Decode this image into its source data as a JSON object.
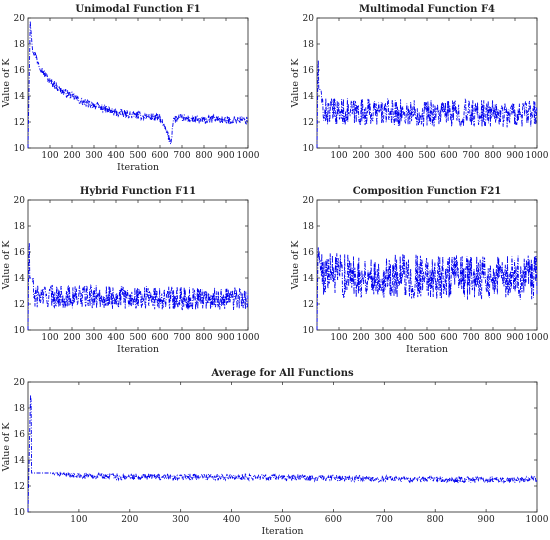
{
  "chart_data": [
    {
      "type": "line",
      "title": "Unimodal Function F1",
      "xlabel": "Iteration",
      "ylabel": "Value of K",
      "xlim": [
        0,
        1000
      ],
      "ylim": [
        10,
        20
      ],
      "xticks": [
        100,
        200,
        300,
        400,
        500,
        600,
        700,
        800,
        900,
        1000
      ],
      "xtick_labels": [
        "100",
        "200",
        "300",
        "400",
        "500",
        "600",
        "700",
        "800",
        "900",
        "1000"
      ],
      "yticks": [
        10,
        12,
        14,
        16,
        18,
        20
      ],
      "ytick_labels": [
        "10",
        "12",
        "14",
        "16",
        "18",
        "20"
      ],
      "grid": false,
      "line_style": "dash-dot",
      "series": [
        {
          "color": "#0000ee",
          "x": [
            0,
            10,
            20,
            40,
            60,
            80,
            100,
            120,
            150,
            200,
            250,
            300,
            350,
            400,
            450,
            500,
            550,
            600,
            630,
            650,
            660,
            700,
            750,
            800,
            850,
            900,
            950,
            1000
          ],
          "y": [
            10.0,
            19.8,
            17.6,
            16.9,
            16.1,
            15.6,
            15.1,
            14.9,
            14.4,
            14.0,
            13.5,
            13.3,
            13.0,
            12.7,
            12.6,
            12.5,
            12.4,
            12.3,
            11.2,
            10.4,
            12.2,
            12.3,
            12.2,
            12.1,
            12.3,
            12.1,
            12.2,
            12.1
          ]
        }
      ]
    },
    {
      "type": "line",
      "title": "Multimodal Function F4",
      "xlabel": "",
      "ylabel": "Value of K",
      "xlim": [
        0,
        1000
      ],
      "ylim": [
        10,
        20
      ],
      "xticks": [
        100,
        200,
        300,
        400,
        500,
        600,
        700,
        800,
        900,
        1000
      ],
      "xtick_labels": [
        "100",
        "200",
        "300",
        "400",
        "500",
        "600",
        "700",
        "800",
        "900",
        "1000"
      ],
      "yticks": [
        10,
        12,
        14,
        16,
        18,
        20
      ],
      "ytick_labels": [
        "10",
        "12",
        "14",
        "16",
        "18",
        "20"
      ],
      "grid": false,
      "line_style": "dash-dot",
      "series": [
        {
          "color": "#0000ee",
          "x": [
            0,
            5,
            15,
            30,
            1000
          ],
          "y": [
            10.0,
            17.0,
            14.5,
            12.8,
            12.6
          ],
          "noise_band": [
            11.0,
            14.5
          ]
        }
      ]
    },
    {
      "type": "line",
      "title": "Hybrid Function F11",
      "xlabel": "Iteration",
      "ylabel": "Value of K",
      "xlim": [
        0,
        1000
      ],
      "ylim": [
        10,
        20
      ],
      "xticks": [
        100,
        200,
        300,
        400,
        500,
        600,
        700,
        800,
        900,
        1000
      ],
      "xtick_labels": [
        "100",
        "200",
        "300",
        "400",
        "500",
        "600",
        "700",
        "800",
        "900",
        "1000"
      ],
      "yticks": [
        10,
        12,
        14,
        16,
        18,
        20
      ],
      "ytick_labels": [
        "10",
        "12",
        "14",
        "16",
        "18",
        "20"
      ],
      "grid": false,
      "line_style": "dash-dot",
      "series": [
        {
          "color": "#0000ee",
          "x": [
            0,
            5,
            15,
            30,
            1000
          ],
          "y": [
            10.0,
            17.0,
            14.2,
            12.6,
            12.4
          ],
          "noise_band": [
            11.0,
            14.0
          ]
        }
      ]
    },
    {
      "type": "line",
      "title": "Composition Function F21",
      "xlabel": "Iteration",
      "ylabel": "Value of K",
      "xlim": [
        0,
        1000
      ],
      "ylim": [
        10,
        20
      ],
      "xticks": [
        100,
        200,
        300,
        400,
        500,
        600,
        700,
        800,
        900,
        1000
      ],
      "xtick_labels": [
        "100",
        "200",
        "300",
        "400",
        "500",
        "600",
        "700",
        "800",
        "900",
        "1000"
      ],
      "yticks": [
        10,
        12,
        14,
        16,
        18,
        20
      ],
      "ytick_labels": [
        "10",
        "12",
        "14",
        "16",
        "18",
        "20"
      ],
      "grid": false,
      "line_style": "dash-dot",
      "series": [
        {
          "color": "#0000ee",
          "x": [
            0,
            5,
            15,
            30,
            1000
          ],
          "y": [
            10.0,
            16.5,
            15.0,
            14.2,
            14.0
          ],
          "noise_band": [
            11.2,
            17.0
          ]
        }
      ]
    },
    {
      "type": "line",
      "title": "Average for All Functions",
      "xlabel": "Iteration",
      "ylabel": "Value of K",
      "xlim": [
        0,
        1000
      ],
      "ylim": [
        10,
        20
      ],
      "xticks": [
        100,
        200,
        300,
        400,
        500,
        600,
        700,
        800,
        900,
        1000
      ],
      "xtick_labels": [
        "100",
        "200",
        "300",
        "400",
        "500",
        "600",
        "700",
        "800",
        "900",
        "1000"
      ],
      "yticks": [
        10,
        12,
        14,
        16,
        18,
        20
      ],
      "ytick_labels": [
        "10",
        "12",
        "14",
        "16",
        "18",
        "20"
      ],
      "grid": false,
      "line_style": "dash-dot",
      "series": [
        {
          "color": "#0000ee",
          "x": [
            0,
            5,
            10,
            15,
            20,
            30,
            50,
            100,
            200,
            400,
            600,
            800,
            1000
          ],
          "y": [
            10.0,
            19.0,
            16.5,
            15.0,
            14.0,
            13.4,
            13.1,
            12.8,
            12.7,
            12.7,
            12.6,
            12.5,
            12.5
          ],
          "noise_band": [
            12.2,
            13.0
          ]
        }
      ]
    }
  ]
}
